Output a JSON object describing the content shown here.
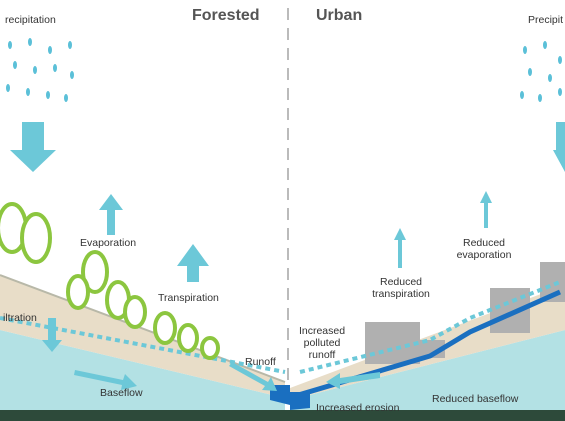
{
  "forested": {
    "title": "Forested",
    "precipitation": "recipitation",
    "labels": {
      "evaporation": "Evaporation",
      "transpiration": "Transpiration",
      "infiltration": "iltration",
      "runoff": "Runoff",
      "baseflow": "Baseflow"
    }
  },
  "urban": {
    "title": "Urban",
    "precipitation": "Precipit",
    "labels": {
      "transpiration": "Reduced transpiration",
      "evaporation": "Reduced evaporation",
      "runoff": "Increased polluted runoff",
      "erosion": "Increased erosion",
      "baseflow": "Reduced baseflow"
    }
  }
}
